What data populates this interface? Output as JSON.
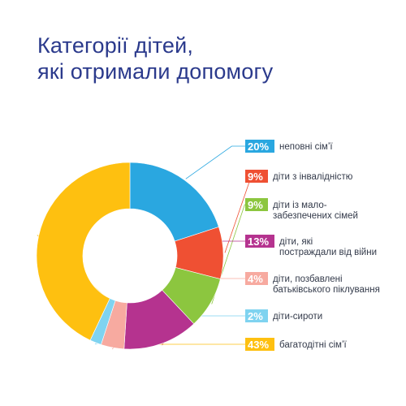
{
  "title": {
    "line1": "Категорії дітей,",
    "line2": "які отримали допомогу"
  },
  "colors": {
    "title": "#2b3a8c",
    "leader": "#6fc3e6"
  },
  "chart_data": {
    "type": "pie",
    "donut": true,
    "start_at": "top, clockwise",
    "legend_placement": "right",
    "series": [
      {
        "label": "неповні сім’ї",
        "value": 20,
        "display": "20%",
        "color": "#2aa7e0"
      },
      {
        "label": "діти з інвалідністю",
        "value": 9,
        "display": "9%",
        "color": "#ef5033"
      },
      {
        "label": "діти із мало-забезпечених сімей",
        "lines": [
          "діти із мало-",
          "забезпечених сімей"
        ],
        "value": 9,
        "display": "9%",
        "color": "#8cc63f"
      },
      {
        "label": "діти, які постраждали від війни",
        "lines": [
          "діти, які",
          "постраждали від війни"
        ],
        "value": 13,
        "display": "13%",
        "color": "#b5338f"
      },
      {
        "label": "діти, позбавлені батьківського піклування",
        "lines": [
          "діти, позбавлені",
          "батьківського піклування"
        ],
        "value": 4,
        "display": "4%",
        "color": "#f7aaa0"
      },
      {
        "label": "діти-сироти",
        "value": 2,
        "display": "2%",
        "color": "#7fd3f0"
      },
      {
        "label": "багатодітні сім’ї",
        "value": 43,
        "display": "43%",
        "color": "#fec010"
      }
    ]
  }
}
